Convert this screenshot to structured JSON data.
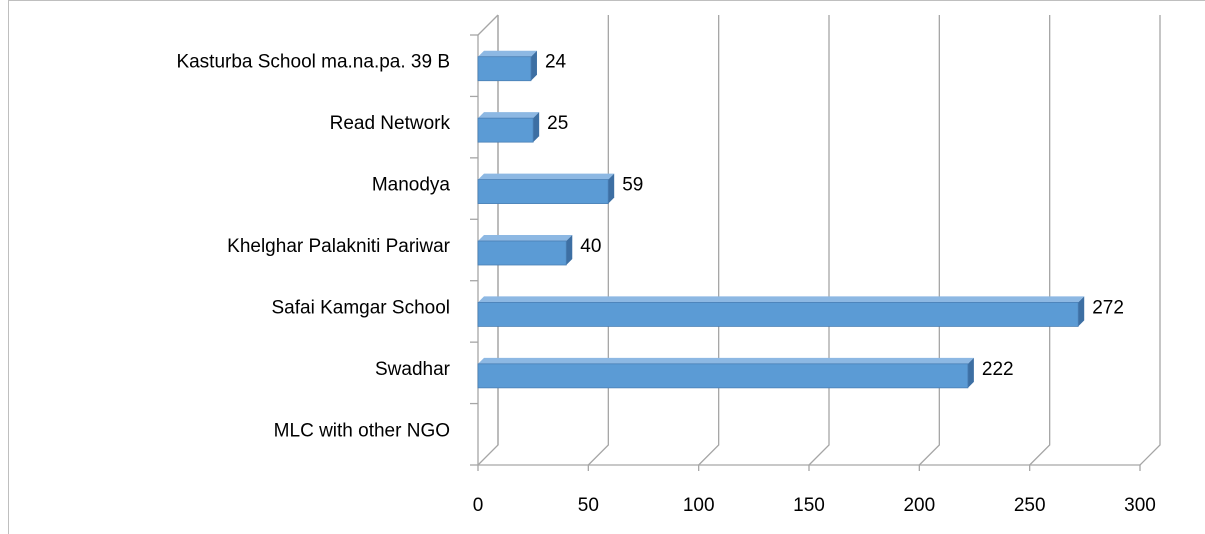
{
  "chart_data": {
    "type": "bar",
    "orientation": "horizontal",
    "categories": [
      "Kasturba School ma.na.pa. 39 B",
      "Read Network",
      "Manodya",
      "Khelghar Palakniti Pariwar",
      "Safai Kamgar School",
      "Swadhar",
      "MLC with other NGO"
    ],
    "values": [
      24,
      25,
      59,
      40,
      272,
      222,
      null
    ],
    "color": "#5b9bd5",
    "xlim": [
      0,
      300
    ],
    "xticks": [
      0,
      50,
      100,
      150,
      200,
      250,
      300
    ],
    "grid": true
  }
}
